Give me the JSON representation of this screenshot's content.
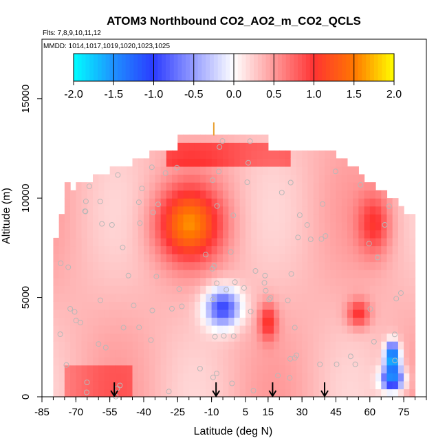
{
  "chart_data": {
    "type": "heatmap",
    "title": "ATOM3 Northbound CO2_AO2_m_CO2_QCLS",
    "flights_label": "Flts: 7,8,9,10,11,12",
    "dates_label": "MMDD: 1014,1017,1019,1020,1023,1025",
    "xlabel": "Latitude (deg N)",
    "ylabel": "Altitude (m)",
    "xlim": [
      -85,
      85
    ],
    "ylim": [
      0,
      18000
    ],
    "x_ticks": [
      -85,
      -70,
      -55,
      -40,
      -25,
      -10,
      5,
      15,
      30,
      45,
      60,
      75
    ],
    "y_ticks": [
      0,
      5000,
      10000,
      15000
    ],
    "colorbar": {
      "min": -2.0,
      "max": 2.0,
      "ticks": [
        "-2.0",
        "-1.5",
        "-1.0",
        "-0.5",
        "0.0",
        "0.5",
        "1.0",
        "1.5",
        "2.0"
      ],
      "colors": [
        "#00ffff",
        "#1e90ff",
        "#2b3bff",
        "#ffffff",
        "#ff3333",
        "#ff7700",
        "#ffff00"
      ]
    },
    "profile_markers_latitude": [
      -53,
      -8,
      17,
      40
    ],
    "annotation_marker": {
      "latitude": -9,
      "altitude": 13500,
      "color": "#e8a030"
    },
    "features": [
      {
        "label": "upper-troposphere maximum",
        "latitude": -20,
        "altitude": 8700,
        "value": 1.4
      },
      {
        "label": "mid-troposphere minimum",
        "latitude": -5,
        "altitude": 4500,
        "value": -1.0
      },
      {
        "label": "lower-tropics maximum",
        "latitude": 15,
        "altitude": 3800,
        "value": 1.0
      },
      {
        "label": "northern upper maximum",
        "latitude": 62,
        "altitude": 8700,
        "value": 0.9
      },
      {
        "label": "northern lower maximum",
        "latitude": 55,
        "altitude": 4200,
        "value": 1.0
      },
      {
        "label": "northern boundary-layer minimum",
        "latitude": 70,
        "altitude": 900,
        "value": -1.4
      },
      {
        "label": "arctic low-level minimum",
        "latitude": 70,
        "altitude": 2000,
        "value": -2.0
      }
    ]
  }
}
